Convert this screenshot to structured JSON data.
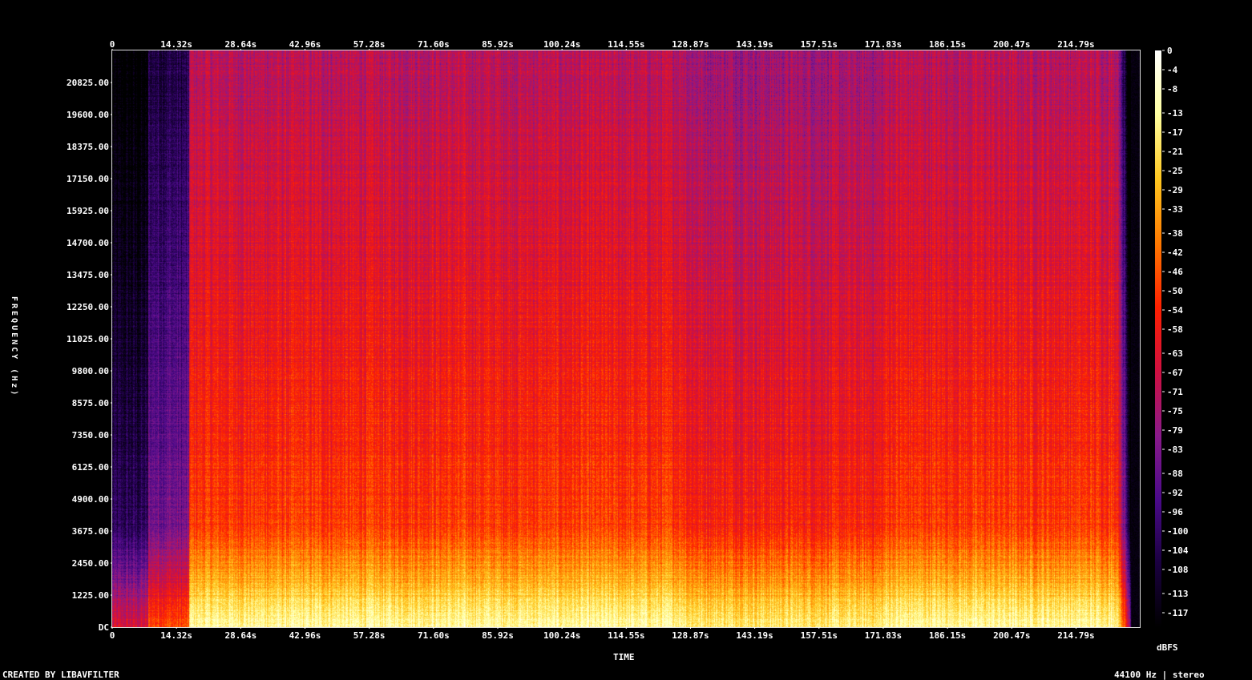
{
  "chart_data": {
    "type": "heatmap",
    "xlabel": "TIME",
    "ylabel": "FREQUENCY (Hz)",
    "x_ticks": [
      "0",
      "14.32s",
      "28.64s",
      "42.96s",
      "57.28s",
      "71.60s",
      "85.92s",
      "100.24s",
      "114.55s",
      "128.87s",
      "143.19s",
      "157.51s",
      "171.83s",
      "186.15s",
      "200.47s",
      "214.79s"
    ],
    "x_tick_values": [
      0,
      14.32,
      28.64,
      42.96,
      57.28,
      71.6,
      85.92,
      100.24,
      114.55,
      128.87,
      143.19,
      157.51,
      171.83,
      186.15,
      200.47,
      214.79
    ],
    "xlim": [
      0,
      229.0
    ],
    "y_ticks": [
      "DC",
      "1225.00",
      "2450.00",
      "3675.00",
      "4900.00",
      "6125.00",
      "7350.00",
      "8575.00",
      "9800.00",
      "11025.00",
      "12250.00",
      "13475.00",
      "14700.00",
      "15925.00",
      "17150.00",
      "18375.00",
      "19600.00",
      "20825.00"
    ],
    "y_tick_values": [
      0,
      1225,
      2450,
      3675,
      4900,
      6125,
      7350,
      8575,
      9800,
      11025,
      12250,
      13475,
      14700,
      15925,
      17150,
      18375,
      19600,
      20825
    ],
    "ylim": [
      0,
      22050
    ],
    "colorbar": {
      "unit": "dBFS",
      "ticks": [
        "0",
        "-4",
        "-8",
        "-13",
        "-17",
        "-21",
        "-25",
        "-29",
        "-33",
        "-38",
        "-42",
        "-46",
        "-50",
        "-54",
        "-58",
        "-63",
        "-67",
        "-71",
        "-75",
        "-79",
        "-83",
        "-88",
        "-92",
        "-96",
        "-100",
        "-104",
        "-108",
        "-113",
        "-117"
      ],
      "range": [
        -120,
        0
      ],
      "colors": [
        "#000000",
        "#1a0040",
        "#4b0a8a",
        "#8a1a8a",
        "#d01040",
        "#ff2000",
        "#ff7a00",
        "#ffc820",
        "#ffffa0",
        "#ffffff"
      ]
    },
    "segments_seconds": [
      {
        "start": 0,
        "end": 8,
        "level": "very quiet intro"
      },
      {
        "start": 8,
        "end": 17,
        "level": "quiet"
      },
      {
        "start": 17,
        "end": 88,
        "level": "loud"
      },
      {
        "start": 88,
        "end": 128,
        "level": "loud"
      },
      {
        "start": 128,
        "end": 172,
        "level": "loud, slightly darker"
      },
      {
        "start": 172,
        "end": 224,
        "level": "loud"
      },
      {
        "start": 224,
        "end": 229,
        "level": "fade out"
      }
    ]
  },
  "footer": {
    "created_by": "CREATED BY LIBAVFILTER",
    "sample_info": "44100 Hz | stereo"
  }
}
